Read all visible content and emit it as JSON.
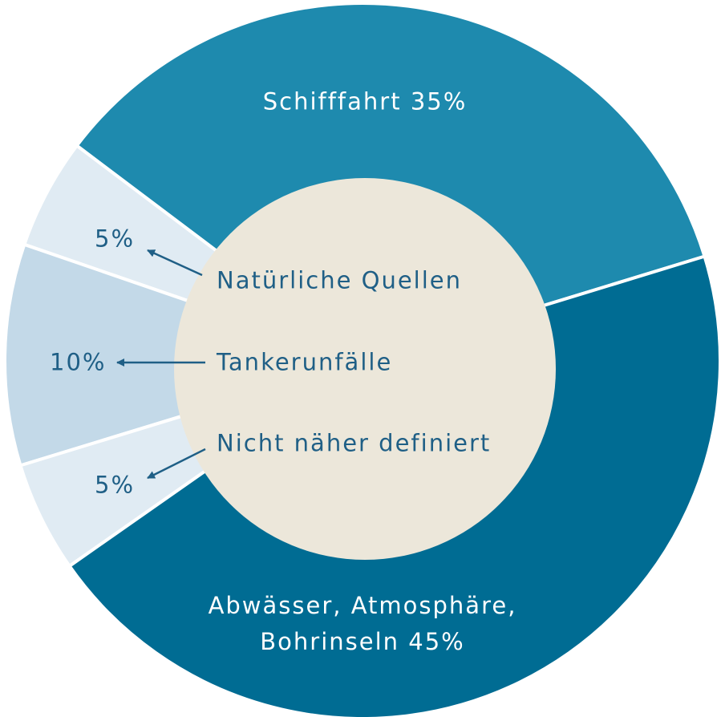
{
  "chart_data": {
    "type": "donut",
    "categories": [
      "Schifffahrt",
      "Natürliche Quellen",
      "Tankerunfälle",
      "Nicht näher definiert",
      "Abwässer, Atmosphäre, Bohrinseln"
    ],
    "values": [
      35,
      5,
      10,
      5,
      45
    ],
    "value_labels": [
      "35%",
      "5%",
      "10%",
      "5%",
      "45%"
    ],
    "colors": [
      "#1e8aae",
      "#e0ebf3",
      "#c3d9e8",
      "#e0ebf3",
      "#006c93"
    ]
  }
}
